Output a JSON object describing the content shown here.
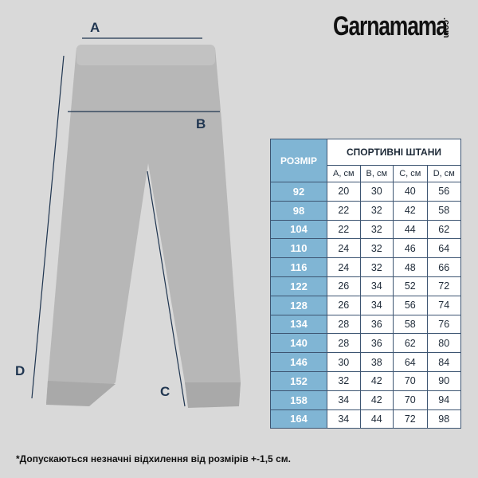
{
  "brand": {
    "name": "Garnamama",
    "suffix": ".com"
  },
  "measure_labels": {
    "a": "A",
    "b": "B",
    "c": "C",
    "d": "D"
  },
  "table": {
    "size_header": "РОЗМІР",
    "title": "СПОРТИВНІ ШТАНИ",
    "columns": [
      "A, см",
      "B, см",
      "C, см",
      "D, см"
    ],
    "rows": [
      {
        "size": "92",
        "values": [
          "20",
          "30",
          "40",
          "56"
        ]
      },
      {
        "size": "98",
        "values": [
          "22",
          "32",
          "42",
          "58"
        ]
      },
      {
        "size": "104",
        "values": [
          "22",
          "32",
          "44",
          "62"
        ]
      },
      {
        "size": "110",
        "values": [
          "24",
          "32",
          "46",
          "64"
        ]
      },
      {
        "size": "116",
        "values": [
          "24",
          "32",
          "48",
          "66"
        ]
      },
      {
        "size": "122",
        "values": [
          "26",
          "34",
          "52",
          "72"
        ]
      },
      {
        "size": "128",
        "values": [
          "26",
          "34",
          "56",
          "74"
        ]
      },
      {
        "size": "134",
        "values": [
          "28",
          "36",
          "58",
          "76"
        ]
      },
      {
        "size": "140",
        "values": [
          "28",
          "36",
          "62",
          "80"
        ]
      },
      {
        "size": "146",
        "values": [
          "30",
          "38",
          "64",
          "84"
        ]
      },
      {
        "size": "152",
        "values": [
          "32",
          "42",
          "70",
          "90"
        ]
      },
      {
        "size": "158",
        "values": [
          "34",
          "42",
          "70",
          "94"
        ]
      },
      {
        "size": "164",
        "values": [
          "34",
          "44",
          "72",
          "98"
        ]
      }
    ]
  },
  "footnote": "*Допускаються незначні відхилення від розмірів +-1,5 см.",
  "colors": {
    "background": "#d9d9d9",
    "size_column": "#80b5d4",
    "lines": "#1f3550",
    "pants": "#b5b5b5"
  }
}
